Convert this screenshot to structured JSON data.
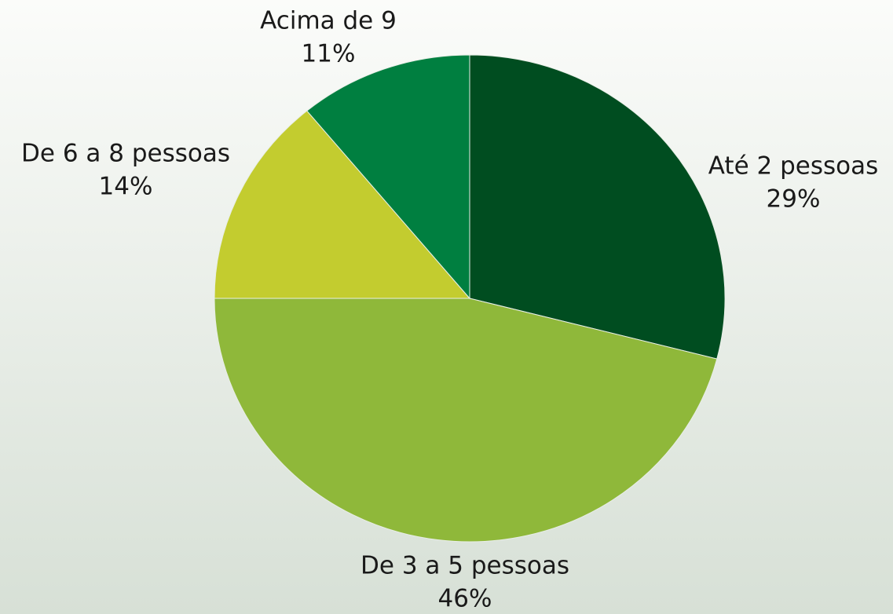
{
  "chart_data": {
    "type": "pie",
    "categories": [
      "Até 2 pessoas",
      "De 3 a 5 pessoas",
      "De 6 a 8 pessoas",
      "Acima de 9"
    ],
    "values": [
      29,
      46,
      14,
      11
    ],
    "value_labels": [
      "29%",
      "46%",
      "14%",
      "11%"
    ],
    "colors": [
      "#004d20",
      "#8fb83a",
      "#c3cc2f",
      "#007f40"
    ]
  }
}
